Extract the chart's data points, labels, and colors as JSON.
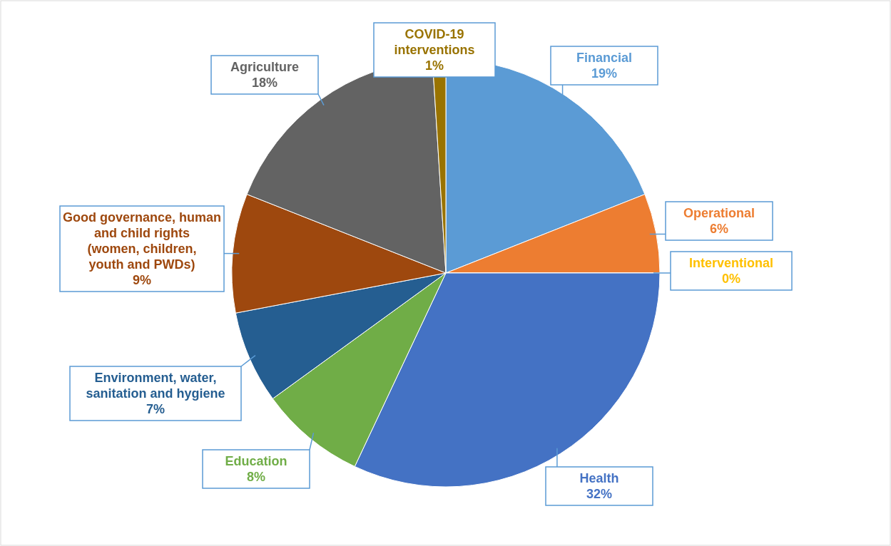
{
  "chart_data": {
    "type": "pie",
    "categories": [
      "Financial",
      "Operational",
      "Interventional",
      "Health",
      "Education",
      "Environment, water, sanitation and hygiene",
      "Good governance, human and child rights (women, children, youth and PWDs)",
      "Agriculture",
      "COVID-19 interventions"
    ],
    "values": [
      19,
      6,
      0,
      32,
      8,
      7,
      9,
      18,
      1
    ],
    "colors": [
      "#5b9bd5",
      "#ed7d31",
      "#ffc000",
      "#4472c4",
      "#70ad47",
      "#255e91",
      "#9e480e",
      "#636363",
      "#997300"
    ],
    "value_labels": [
      "19%",
      "6%",
      "0%",
      "32%",
      "8%",
      "7%",
      "9%",
      "18%",
      "1%"
    ]
  }
}
